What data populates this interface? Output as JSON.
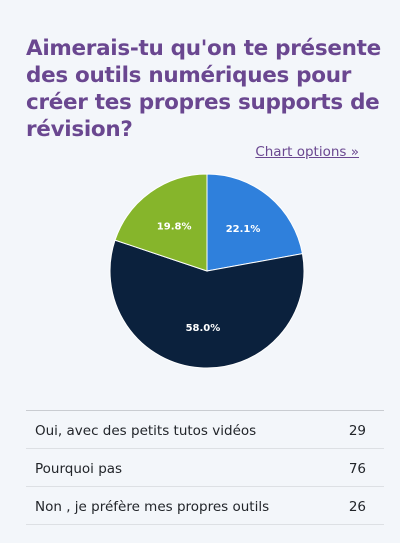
{
  "title": "Aimerais-tu qu'on te présente des outils numériques pour créer tes propres supports de révision?",
  "chart_options_label": "Chart options »",
  "chart_data": {
    "type": "pie",
    "categories": [
      "Oui, avec des petits tutos vidéos",
      "Pourquoi pas",
      "Non , je préfère mes propres outils"
    ],
    "values": [
      29,
      76,
      26
    ],
    "percent_labels": [
      "22.1%",
      "58.0%",
      "19.8%"
    ],
    "colors": [
      "#2f80dc",
      "#0b213d",
      "#86b52b"
    ]
  },
  "table": {
    "rows": [
      {
        "label": "Oui, avec des petits tutos vidéos",
        "value": "29"
      },
      {
        "label": "Pourquoi pas",
        "value": "76"
      },
      {
        "label": "Non , je préfère mes propres outils",
        "value": "26"
      }
    ]
  }
}
